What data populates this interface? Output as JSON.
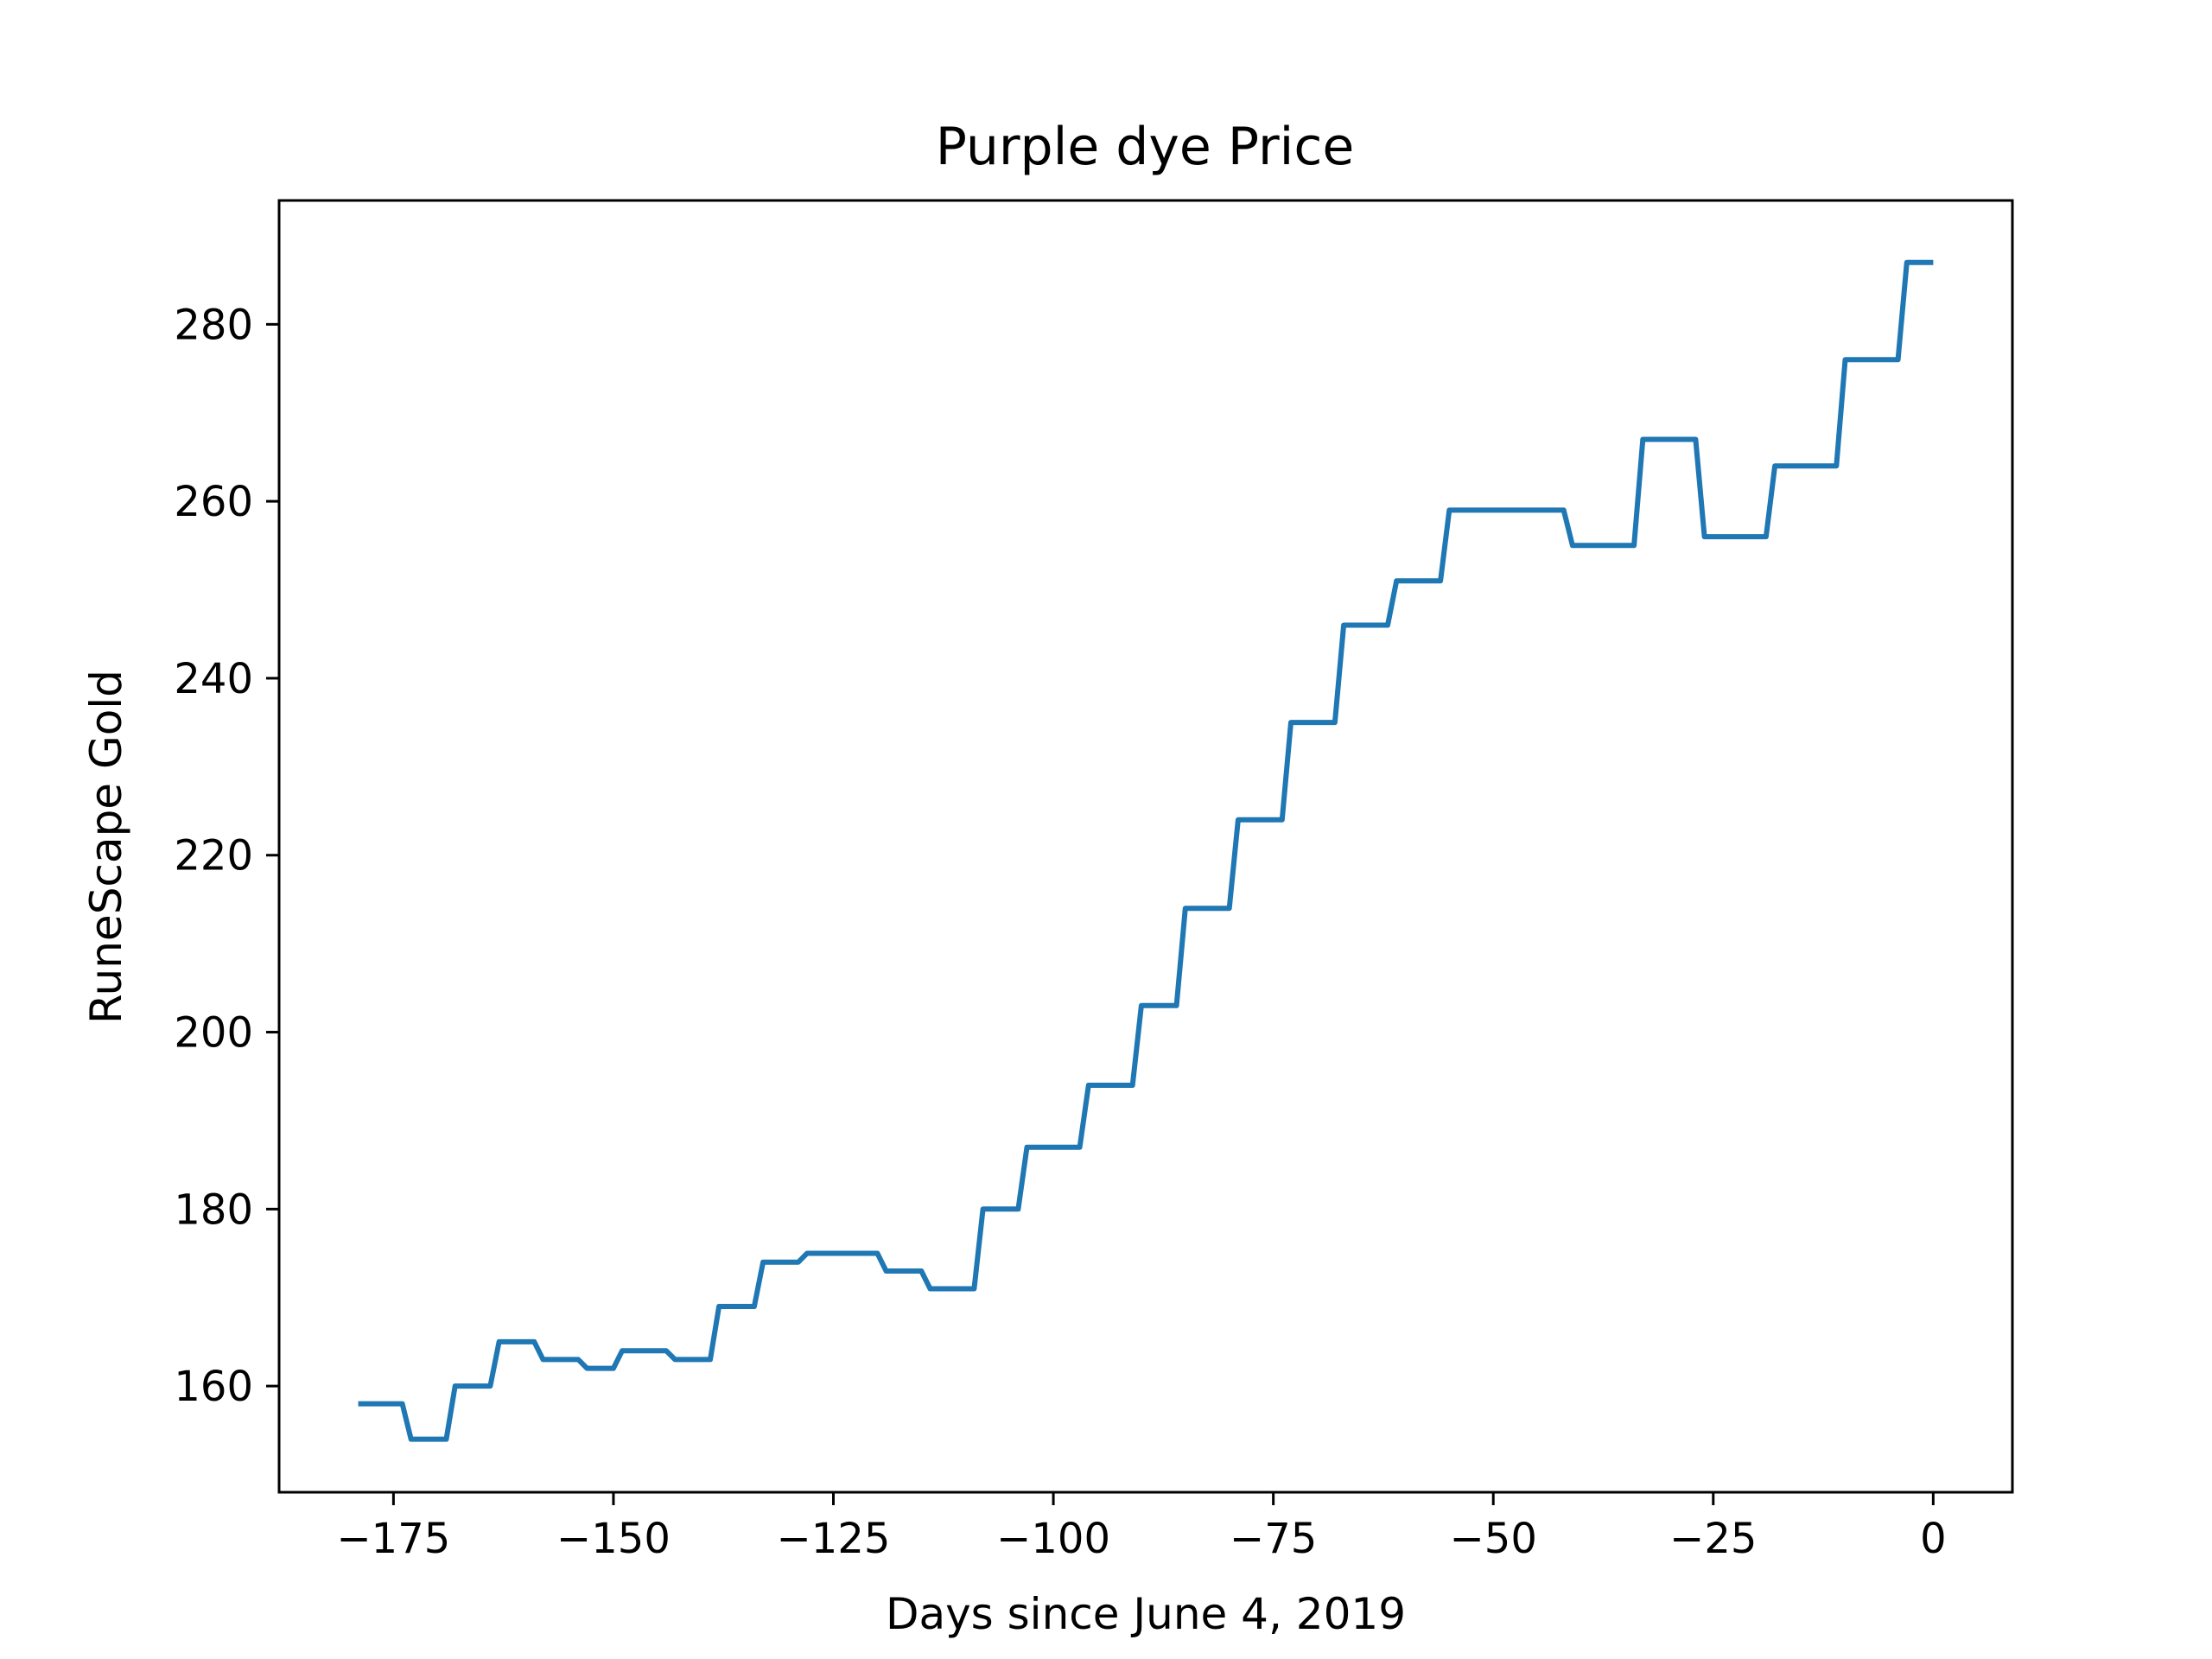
{
  "chart_data": {
    "type": "line",
    "title": "Purple dye Price",
    "xlabel": "Days since June 4, 2019",
    "ylabel": "RuneScape Gold",
    "xlim": [
      -188,
      9
    ],
    "ylim": [
      148,
      294
    ],
    "xticks": [
      -175,
      -150,
      -125,
      -100,
      -75,
      -50,
      -25,
      0
    ],
    "xtick_labels": [
      "−175",
      "−150",
      "−125",
      "−100",
      "−75",
      "−50",
      "−25",
      "0"
    ],
    "yticks": [
      160,
      180,
      200,
      220,
      240,
      260,
      280
    ],
    "ytick_labels": [
      "160",
      "180",
      "200",
      "220",
      "240",
      "260",
      "280"
    ],
    "grid": false,
    "series": [
      {
        "color": "#1f77b4",
        "x": [
          -179,
          -174,
          -173,
          -169,
          -168,
          -164,
          -163,
          -159,
          -158,
          -154,
          -153,
          -150,
          -149,
          -144,
          -143,
          -139,
          -138,
          -134,
          -133,
          -129,
          -128,
          -120,
          -119,
          -115,
          -114,
          -109,
          -108,
          -104,
          -103,
          -97,
          -96,
          -91,
          -90,
          -86,
          -85,
          -80,
          -79,
          -74,
          -73,
          -68,
          -67,
          -62,
          -61,
          -56,
          -55,
          -42,
          -41,
          -34,
          -33,
          -27,
          -26,
          -19,
          -18,
          -11,
          -10,
          -4,
          -3,
          0
        ],
        "y": [
          158,
          158,
          154,
          154,
          160,
          160,
          165,
          165,
          163,
          163,
          162,
          162,
          164,
          164,
          163,
          163,
          169,
          169,
          174,
          174,
          175,
          175,
          173,
          173,
          171,
          171,
          180,
          180,
          187,
          187,
          194,
          194,
          203,
          203,
          214,
          214,
          224,
          224,
          235,
          235,
          246,
          246,
          251,
          251,
          259,
          259,
          255,
          255,
          267,
          267,
          256,
          256,
          264,
          264,
          276,
          276,
          287,
          287
        ]
      }
    ]
  }
}
